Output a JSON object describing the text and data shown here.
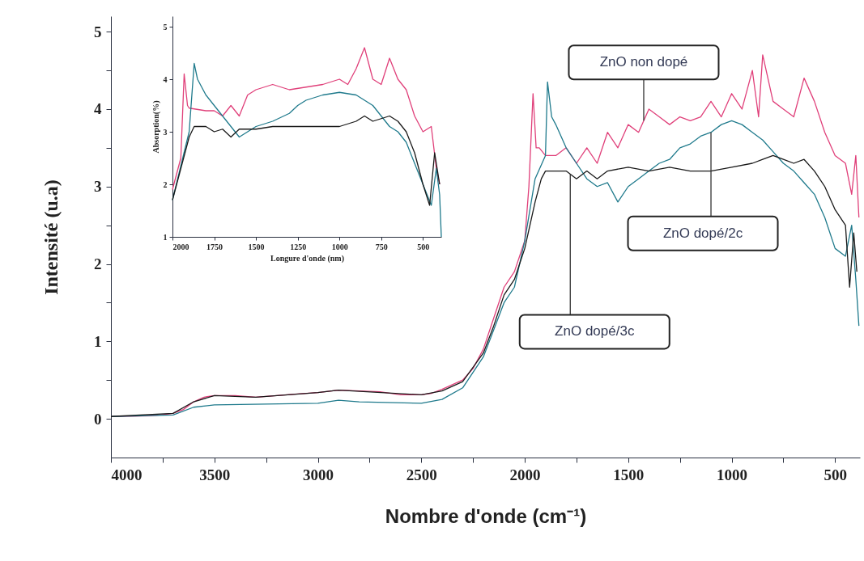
{
  "chart_data": [
    {
      "type": "line",
      "xlabel": "Nombre d'onde (cm⁻¹)",
      "ylabel": "Intensité (u.a)",
      "xlim": [
        4000,
        380
      ],
      "ylim": [
        -0.5,
        5.2
      ],
      "xticks": [
        4000,
        {
          "value": 3750,
          "label": null
        },
        3500,
        {
          "value": 3250,
          "label": null
        },
        3000,
        {
          "value": 2750,
          "label": null
        },
        2500,
        {
          "value": 2250,
          "label": null
        },
        2000,
        {
          "value": 1750,
          "label": null
        },
        1500,
        {
          "value": 1250,
          "label": null
        },
        1000,
        {
          "value": 750,
          "label": null
        },
        500
      ],
      "yticks": [
        0,
        {
          "value": 0.5,
          "label": null
        },
        1,
        {
          "value": 1.5,
          "label": null
        },
        2,
        {
          "value": 2.5,
          "label": null
        },
        3,
        {
          "value": 3.5,
          "label": null
        },
        4,
        {
          "value": 4.5,
          "label": null
        },
        5
      ],
      "grid": false,
      "marker": "none",
      "line_style": "solid",
      "series": [
        {
          "color": "#e0407a",
          "x": [
            4000,
            3800,
            3700,
            3650,
            3600,
            3550,
            3500,
            3400,
            3300,
            3200,
            3100,
            3000,
            2900,
            2800,
            2700,
            2600,
            2500,
            2450,
            2400,
            2300,
            2250,
            2200,
            2150,
            2100,
            2050,
            2000,
            1980,
            1960,
            1945,
            1930,
            1900,
            1850,
            1800,
            1750,
            1700,
            1650,
            1600,
            1550,
            1500,
            1450,
            1400,
            1350,
            1300,
            1250,
            1200,
            1150,
            1100,
            1050,
            1000,
            950,
            900,
            870,
            850,
            800,
            750,
            700,
            650,
            600,
            550,
            500,
            450,
            420,
            400,
            385
          ],
          "values": [
            0.03,
            0.04,
            0.07,
            0.12,
            0.22,
            0.28,
            0.3,
            0.3,
            0.28,
            0.3,
            0.32,
            0.34,
            0.37,
            0.36,
            0.35,
            0.31,
            0.31,
            0.33,
            0.38,
            0.5,
            0.65,
            0.9,
            1.3,
            1.7,
            1.9,
            2.3,
            3.0,
            4.2,
            3.5,
            3.5,
            3.4,
            3.4,
            3.5,
            3.3,
            3.5,
            3.3,
            3.7,
            3.5,
            3.8,
            3.7,
            4.0,
            3.9,
            3.8,
            3.9,
            3.85,
            3.9,
            4.1,
            3.9,
            4.2,
            4.0,
            4.5,
            3.9,
            4.7,
            4.1,
            4.0,
            3.9,
            4.4,
            4.1,
            3.7,
            3.4,
            3.3,
            2.9,
            3.4,
            2.6
          ]
        },
        {
          "color": "#1f7a8c",
          "x": [
            4000,
            3700,
            3600,
            3500,
            3000,
            2900,
            2800,
            2500,
            2400,
            2300,
            2200,
            2100,
            2050,
            2000,
            1950,
            1900,
            1890,
            1870,
            1850,
            1800,
            1750,
            1700,
            1650,
            1600,
            1550,
            1500,
            1450,
            1400,
            1350,
            1300,
            1250,
            1200,
            1150,
            1100,
            1050,
            1000,
            950,
            900,
            850,
            800,
            750,
            700,
            650,
            600,
            550,
            500,
            450,
            420,
            400,
            385
          ],
          "values": [
            0.03,
            0.05,
            0.15,
            0.18,
            0.2,
            0.24,
            0.22,
            0.2,
            0.25,
            0.4,
            0.8,
            1.5,
            1.7,
            2.3,
            3.1,
            3.4,
            4.35,
            3.9,
            3.8,
            3.5,
            3.3,
            3.1,
            3.0,
            3.05,
            2.8,
            3.0,
            3.1,
            3.2,
            3.3,
            3.35,
            3.5,
            3.55,
            3.65,
            3.7,
            3.8,
            3.85,
            3.8,
            3.7,
            3.6,
            3.45,
            3.3,
            3.2,
            3.05,
            2.9,
            2.6,
            2.2,
            2.1,
            2.5,
            1.8,
            1.2
          ]
        },
        {
          "color": "#1a1a1a",
          "x": [
            4000,
            3700,
            3600,
            3500,
            3400,
            3300,
            3000,
            2900,
            2500,
            2400,
            2300,
            2200,
            2150,
            2100,
            2050,
            2000,
            1950,
            1920,
            1900,
            1850,
            1800,
            1750,
            1700,
            1650,
            1600,
            1500,
            1400,
            1300,
            1200,
            1100,
            1000,
            900,
            850,
            800,
            750,
            700,
            650,
            600,
            550,
            500,
            450,
            430,
            410,
            395
          ],
          "values": [
            0.03,
            0.07,
            0.22,
            0.3,
            0.29,
            0.28,
            0.34,
            0.37,
            0.31,
            0.36,
            0.48,
            0.85,
            1.2,
            1.6,
            1.8,
            2.2,
            2.8,
            3.1,
            3.2,
            3.2,
            3.2,
            3.1,
            3.2,
            3.1,
            3.2,
            3.25,
            3.2,
            3.25,
            3.2,
            3.2,
            3.25,
            3.3,
            3.35,
            3.4,
            3.35,
            3.3,
            3.35,
            3.2,
            3.0,
            2.7,
            2.5,
            1.7,
            2.4,
            1.9
          ]
        }
      ],
      "annotations": [
        {
          "text": "ZnO non dopé",
          "x": 1425,
          "y": 3.85
        },
        {
          "text": "ZnO dopé/2c",
          "x": 1100,
          "y": 3.7
        },
        {
          "text": "ZnO dopé/3c",
          "x": 1780,
          "y": 3.16
        }
      ]
    },
    {
      "type": "line",
      "xlabel": "Longure d'onde (nm)",
      "ylabel": "Absorption(%)",
      "xlim": [
        2000,
        390
      ],
      "ylim": [
        1,
        5.2
      ],
      "xticks": [
        2000,
        1750,
        1500,
        1250,
        1000,
        750,
        500
      ],
      "yticks": [
        1,
        2,
        3,
        4,
        5
      ],
      "grid": false,
      "marker": "none",
      "line_style": "solid",
      "series": [
        {
          "color": "#e0407a",
          "x": [
            2000,
            1950,
            1930,
            1910,
            1900,
            1800,
            1750,
            1700,
            1650,
            1600,
            1550,
            1500,
            1400,
            1300,
            1200,
            1100,
            1000,
            950,
            900,
            850,
            800,
            750,
            700,
            650,
            600,
            550,
            500,
            450,
            420,
            400
          ],
          "values": [
            1.9,
            2.5,
            4.1,
            3.5,
            3.45,
            3.4,
            3.4,
            3.3,
            3.5,
            3.3,
            3.7,
            3.8,
            3.9,
            3.8,
            3.85,
            3.9,
            4.0,
            3.9,
            4.2,
            4.6,
            4.0,
            3.9,
            4.4,
            4.0,
            3.8,
            3.3,
            3.0,
            3.1,
            2.3,
            2.0
          ]
        },
        {
          "color": "#1f7a8c",
          "x": [
            2000,
            1900,
            1870,
            1850,
            1800,
            1750,
            1700,
            1650,
            1600,
            1550,
            1500,
            1400,
            1300,
            1250,
            1200,
            1100,
            1000,
            900,
            800,
            750,
            700,
            650,
            600,
            550,
            500,
            450,
            420,
            400,
            390
          ],
          "values": [
            1.7,
            3.0,
            4.3,
            4.0,
            3.7,
            3.5,
            3.3,
            3.1,
            2.9,
            3.0,
            3.1,
            3.2,
            3.35,
            3.5,
            3.6,
            3.7,
            3.75,
            3.7,
            3.5,
            3.3,
            3.1,
            3.0,
            2.8,
            2.4,
            2.0,
            1.6,
            2.3,
            1.8,
            1.0
          ]
        },
        {
          "color": "#1a1a1a",
          "x": [
            2000,
            1900,
            1870,
            1800,
            1750,
            1700,
            1650,
            1600,
            1500,
            1400,
            1300,
            1200,
            1100,
            1000,
            900,
            850,
            800,
            750,
            700,
            650,
            600,
            550,
            500,
            460,
            430,
            400
          ],
          "values": [
            1.7,
            2.9,
            3.1,
            3.1,
            3.0,
            3.05,
            2.9,
            3.05,
            3.05,
            3.1,
            3.1,
            3.1,
            3.1,
            3.1,
            3.2,
            3.3,
            3.2,
            3.25,
            3.3,
            3.2,
            3.0,
            2.6,
            2.0,
            1.6,
            2.6,
            2.0
          ]
        }
      ]
    }
  ]
}
